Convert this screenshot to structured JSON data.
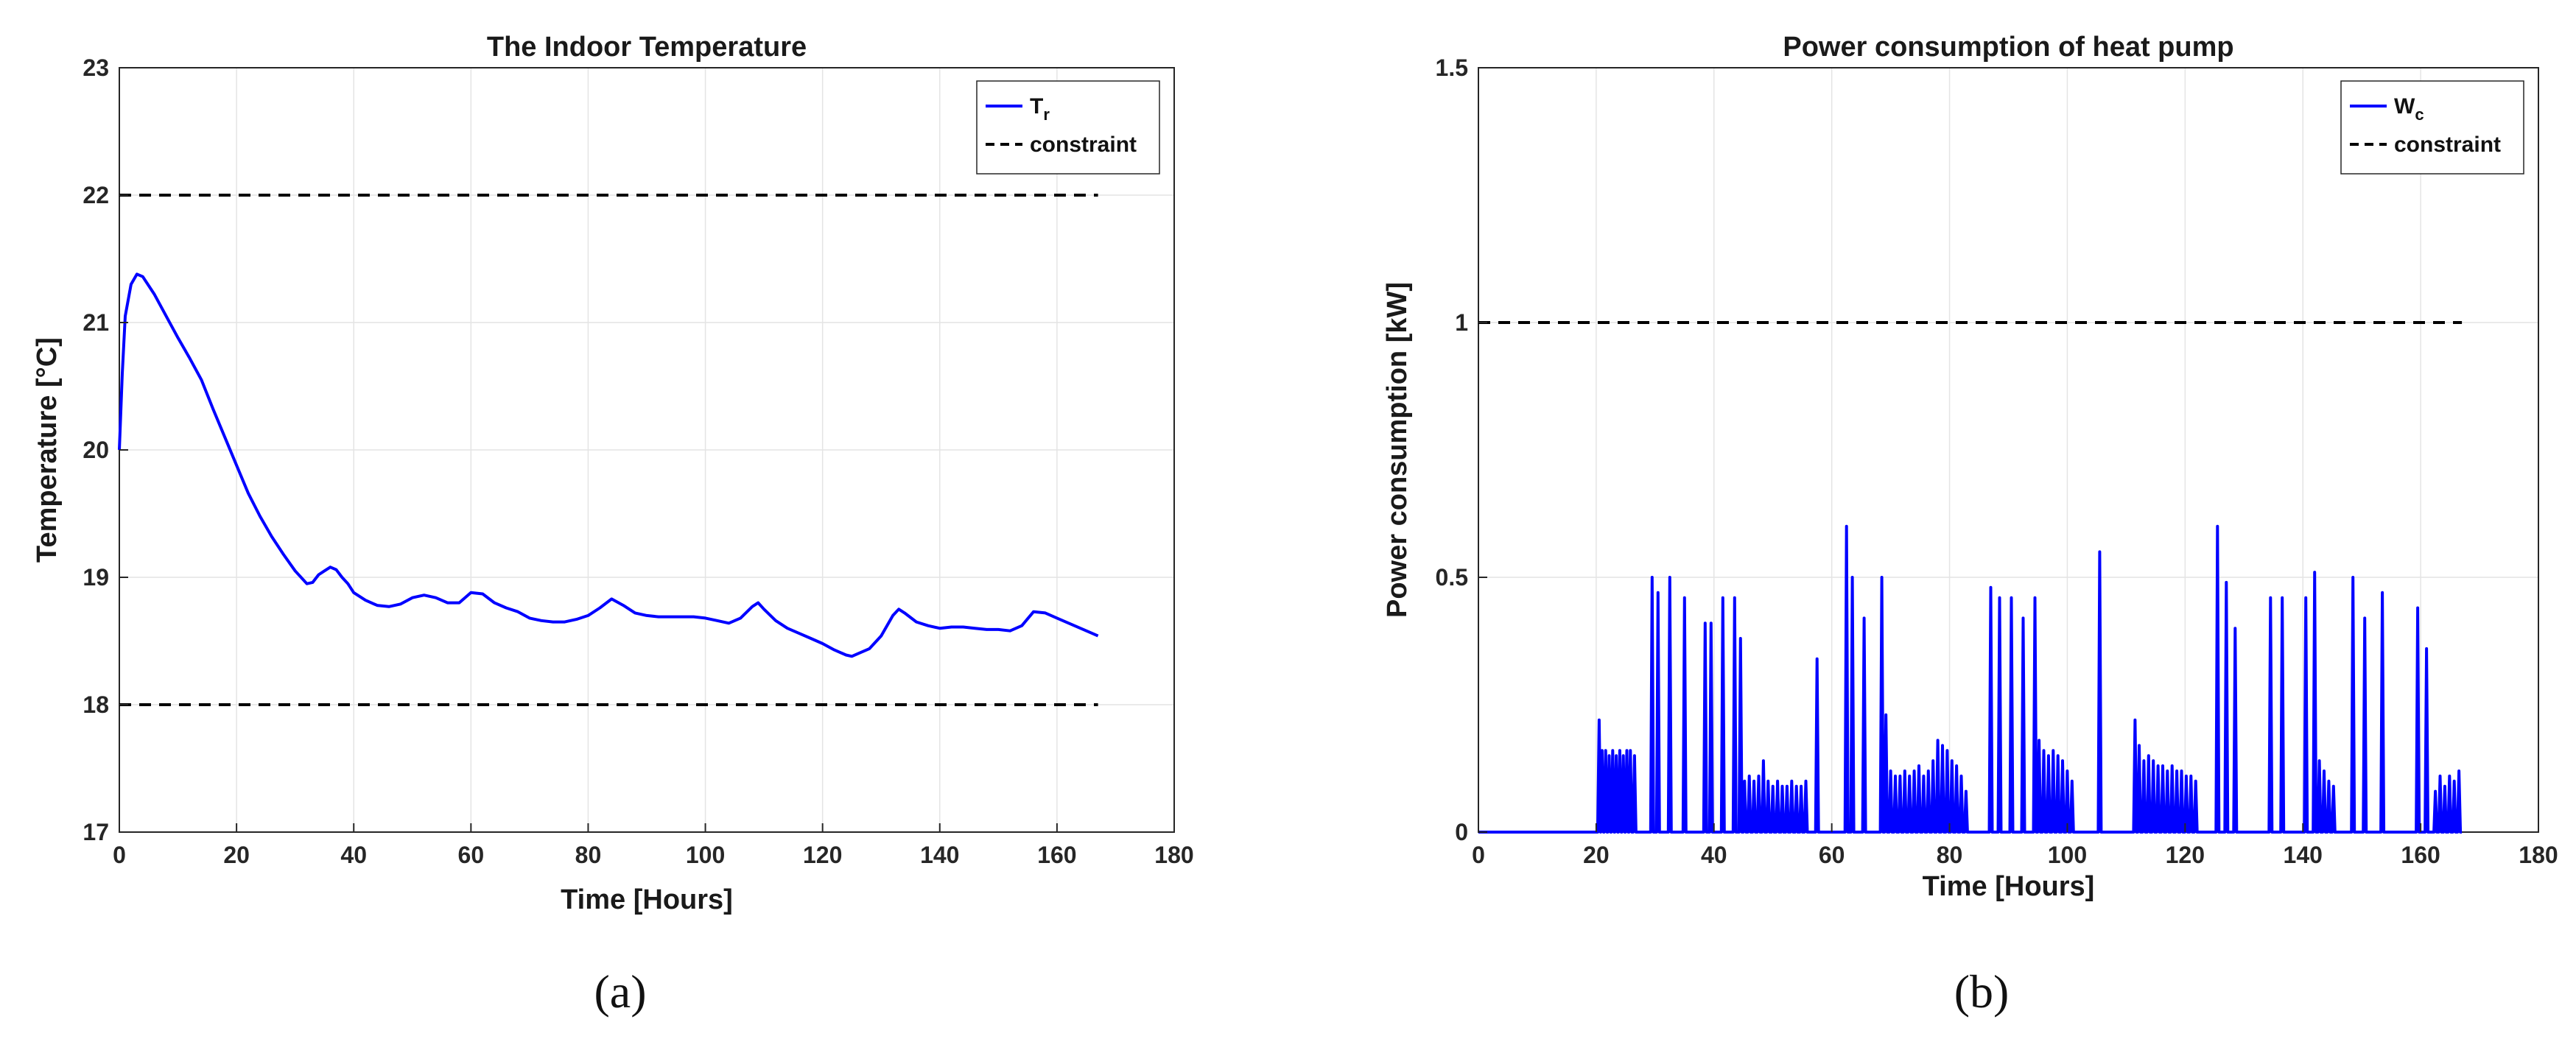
{
  "colors": {
    "series": "#0000ff",
    "constraint": "#000000",
    "grid": "#e4e4e4",
    "axis": "#262626"
  },
  "captions": [
    "(a)",
    "(b)"
  ],
  "chart_data": [
    {
      "type": "line",
      "title": "The Indoor Temperature",
      "xlabel": "Time [Hours]",
      "ylabel": "Temperature [°C]",
      "xlim": [
        0,
        180
      ],
      "ylim": [
        17,
        23
      ],
      "xticks": [
        0,
        20,
        40,
        60,
        80,
        100,
        120,
        140,
        160,
        180
      ],
      "yticks": [
        17,
        18,
        19,
        20,
        21,
        22,
        23
      ],
      "grid": true,
      "legend_position": "top-right",
      "series": [
        {
          "name": "T",
          "name_sub": "r",
          "style": "solid",
          "x": [
            0,
            0.5,
            1,
            2,
            3,
            4,
            6,
            8,
            10,
            12,
            14,
            16,
            18,
            20,
            22,
            24,
            26,
            28,
            30,
            32,
            33,
            34,
            35,
            36,
            37,
            38,
            39,
            40,
            42,
            44,
            46,
            48,
            50,
            52,
            54,
            56,
            58,
            60,
            62,
            64,
            66,
            68,
            70,
            72,
            74,
            76,
            78,
            80,
            82,
            84,
            86,
            88,
            90,
            92,
            94,
            96,
            98,
            100,
            102,
            104,
            106,
            108,
            109,
            110,
            112,
            114,
            116,
            118,
            120,
            122,
            124,
            125,
            126,
            128,
            130,
            132,
            133,
            134,
            136,
            138,
            140,
            142,
            144,
            146,
            148,
            150,
            152,
            154,
            156,
            158,
            160,
            162,
            164,
            166,
            167
          ],
          "y": [
            20.0,
            20.6,
            21.05,
            21.3,
            21.38,
            21.36,
            21.22,
            21.05,
            20.88,
            20.72,
            20.55,
            20.32,
            20.1,
            19.88,
            19.66,
            19.48,
            19.32,
            19.18,
            19.05,
            18.95,
            18.96,
            19.02,
            19.05,
            19.08,
            19.06,
            19.0,
            18.95,
            18.88,
            18.82,
            18.78,
            18.77,
            18.79,
            18.84,
            18.86,
            18.84,
            18.8,
            18.8,
            18.88,
            18.87,
            18.8,
            18.76,
            18.73,
            18.68,
            18.66,
            18.65,
            18.65,
            18.67,
            18.7,
            18.76,
            18.83,
            18.78,
            18.72,
            18.7,
            18.69,
            18.69,
            18.69,
            18.69,
            18.68,
            18.66,
            18.64,
            18.68,
            18.77,
            18.8,
            18.75,
            18.66,
            18.6,
            18.56,
            18.52,
            18.48,
            18.43,
            18.39,
            18.38,
            18.4,
            18.44,
            18.54,
            18.7,
            18.75,
            18.72,
            18.65,
            18.62,
            18.6,
            18.61,
            18.61,
            18.6,
            18.59,
            18.59,
            18.58,
            18.62,
            18.73,
            18.72,
            18.68,
            18.64,
            18.6,
            18.56,
            18.54
          ]
        },
        {
          "name": "constraint",
          "style": "dashed",
          "x": [
            0,
            167
          ],
          "y": [
            22,
            22
          ]
        },
        {
          "name": "constraint",
          "style": "dashed",
          "x": [
            0,
            167
          ],
          "y": [
            18,
            18
          ],
          "legend": false
        }
      ]
    },
    {
      "type": "line",
      "title": "Power consumption of heat pump",
      "xlabel": "Time [Hours]",
      "ylabel": "Power consumption [kW]",
      "xlim": [
        0,
        180
      ],
      "ylim": [
        0,
        1.5
      ],
      "xticks": [
        0,
        20,
        40,
        60,
        80,
        100,
        120,
        140,
        160,
        180
      ],
      "yticks": [
        0,
        0.5,
        1,
        1.5
      ],
      "grid": true,
      "legend_position": "top-right",
      "series": [
        {
          "name": "W",
          "name_sub": "c",
          "style": "solid",
          "spikes": [
            [
              20.5,
              0.22
            ],
            [
              21.0,
              0.16
            ],
            [
              21.6,
              0.16
            ],
            [
              22.2,
              0.15
            ],
            [
              22.8,
              0.16
            ],
            [
              23.4,
              0.15
            ],
            [
              24.0,
              0.16
            ],
            [
              24.6,
              0.15
            ],
            [
              25.2,
              0.16
            ],
            [
              25.8,
              0.16
            ],
            [
              26.5,
              0.15
            ],
            [
              29.5,
              0.5
            ],
            [
              30.5,
              0.47
            ],
            [
              32.5,
              0.5
            ],
            [
              35.0,
              0.46
            ],
            [
              38.5,
              0.41
            ],
            [
              39.5,
              0.41
            ],
            [
              41.5,
              0.46
            ],
            [
              43.5,
              0.46
            ],
            [
              44.5,
              0.38
            ],
            [
              45.2,
              0.1
            ],
            [
              46.0,
              0.11
            ],
            [
              46.8,
              0.1
            ],
            [
              47.6,
              0.11
            ],
            [
              48.4,
              0.14
            ],
            [
              49.2,
              0.1
            ],
            [
              50.0,
              0.09
            ],
            [
              50.8,
              0.1
            ],
            [
              51.6,
              0.09
            ],
            [
              52.4,
              0.09
            ],
            [
              53.2,
              0.1
            ],
            [
              54.0,
              0.09
            ],
            [
              54.8,
              0.09
            ],
            [
              55.6,
              0.1
            ],
            [
              57.5,
              0.34
            ],
            [
              62.5,
              0.6
            ],
            [
              63.5,
              0.5
            ],
            [
              65.5,
              0.42
            ],
            [
              68.5,
              0.5
            ],
            [
              69.2,
              0.23
            ],
            [
              70.0,
              0.12
            ],
            [
              70.8,
              0.11
            ],
            [
              71.6,
              0.11
            ],
            [
              72.4,
              0.12
            ],
            [
              73.2,
              0.11
            ],
            [
              74.0,
              0.12
            ],
            [
              74.8,
              0.13
            ],
            [
              75.6,
              0.11
            ],
            [
              76.4,
              0.12
            ],
            [
              77.2,
              0.14
            ],
            [
              78.0,
              0.18
            ],
            [
              78.8,
              0.17
            ],
            [
              79.6,
              0.16
            ],
            [
              80.4,
              0.14
            ],
            [
              81.2,
              0.13
            ],
            [
              82.0,
              0.11
            ],
            [
              82.8,
              0.08
            ],
            [
              87.0,
              0.48
            ],
            [
              88.5,
              0.46
            ],
            [
              90.5,
              0.46
            ],
            [
              92.5,
              0.42
            ],
            [
              94.5,
              0.46
            ],
            [
              95.2,
              0.18
            ],
            [
              96.0,
              0.16
            ],
            [
              96.8,
              0.15
            ],
            [
              97.6,
              0.16
            ],
            [
              98.4,
              0.15
            ],
            [
              99.2,
              0.14
            ],
            [
              100.0,
              0.12
            ],
            [
              100.8,
              0.1
            ],
            [
              105.5,
              0.55
            ],
            [
              111.5,
              0.22
            ],
            [
              112.2,
              0.17
            ],
            [
              113.0,
              0.14
            ],
            [
              113.8,
              0.15
            ],
            [
              114.6,
              0.14
            ],
            [
              115.4,
              0.13
            ],
            [
              116.2,
              0.13
            ],
            [
              117.0,
              0.12
            ],
            [
              117.8,
              0.13
            ],
            [
              118.6,
              0.12
            ],
            [
              119.4,
              0.12
            ],
            [
              120.2,
              0.11
            ],
            [
              121.0,
              0.11
            ],
            [
              121.8,
              0.1
            ],
            [
              125.5,
              0.6
            ],
            [
              127.0,
              0.49
            ],
            [
              128.5,
              0.4
            ],
            [
              134.5,
              0.46
            ],
            [
              136.5,
              0.46
            ],
            [
              140.5,
              0.46
            ],
            [
              142.0,
              0.51
            ],
            [
              142.8,
              0.14
            ],
            [
              143.6,
              0.12
            ],
            [
              144.4,
              0.1
            ],
            [
              145.2,
              0.09
            ],
            [
              148.5,
              0.5
            ],
            [
              150.5,
              0.42
            ],
            [
              153.5,
              0.47
            ],
            [
              159.5,
              0.44
            ],
            [
              161.0,
              0.36
            ],
            [
              162.5,
              0.08
            ],
            [
              163.3,
              0.11
            ],
            [
              164.1,
              0.09
            ],
            [
              164.9,
              0.11
            ],
            [
              165.7,
              0.1
            ],
            [
              166.5,
              0.12
            ]
          ],
          "end_x": 167
        },
        {
          "name": "constraint",
          "style": "dashed",
          "x": [
            0,
            167
          ],
          "y": [
            1,
            1
          ]
        }
      ]
    }
  ]
}
